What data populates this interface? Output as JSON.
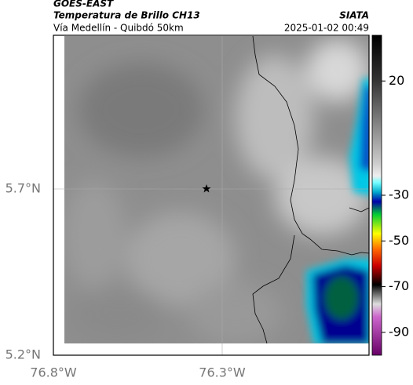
{
  "header": {
    "satellite": "GOES-EAST",
    "product": "Temperatura de Brillo CH13",
    "region": "Vía Medellín - Quibdó 50km",
    "source": "SIATA",
    "datetime": "2025-01-02 00:49"
  },
  "axes": {
    "lat_labels": [
      "5.7°N",
      "5.2°N"
    ],
    "lon_labels": [
      "76.8°W",
      "76.3°W"
    ]
  },
  "colorbar": {
    "lim": [
      40,
      -100
    ],
    "ticks": [
      20,
      -30,
      -50,
      -70,
      -90
    ]
  }
}
